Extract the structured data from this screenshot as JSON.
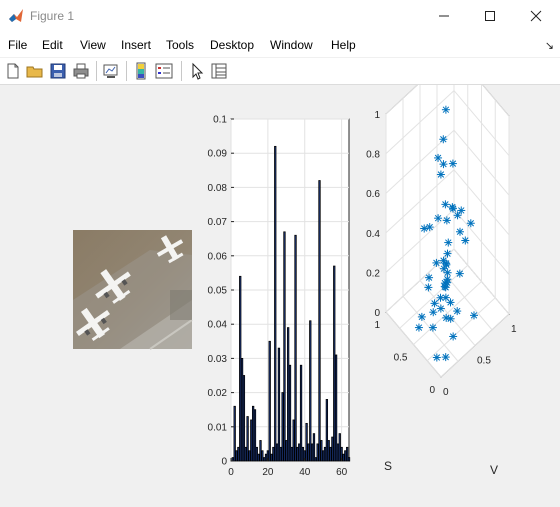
{
  "window": {
    "title": "Figure 1"
  },
  "menu": [
    "File",
    "Edit",
    "View",
    "Insert",
    "Tools",
    "Desktop",
    "Window",
    "Help"
  ],
  "toolbar_icons": [
    "new-figure-icon",
    "open-file-icon",
    "save-icon",
    "print-icon",
    "link-plot-icon",
    "colorbar-icon",
    "legend-icon",
    "pointer-icon",
    "property-inspector-icon"
  ],
  "image_panel": {
    "content": "aerial-airplanes-photo"
  },
  "chart_data": [
    {
      "type": "bar",
      "xlim": [
        0,
        64
      ],
      "ylim": [
        0,
        0.1
      ],
      "xticks": [
        "0",
        "20",
        "40",
        "60"
      ],
      "yticks": [
        "0",
        "0.01",
        "0.02",
        "0.03",
        "0.04",
        "0.05",
        "0.06",
        "0.07",
        "0.08",
        "0.09",
        "0.1"
      ],
      "grid": true,
      "values": [
        0.001,
        0.016,
        0.003,
        0.004,
        0.054,
        0.03,
        0.025,
        0.004,
        0.013,
        0.003,
        0.012,
        0.016,
        0.015,
        0.004,
        0.002,
        0.006,
        0.003,
        0.001,
        0.002,
        0.003,
        0.035,
        0.002,
        0.004,
        0.092,
        0.005,
        0.033,
        0.004,
        0.02,
        0.067,
        0.006,
        0.039,
        0.028,
        0.004,
        0.012,
        0.066,
        0.004,
        0.005,
        0.028,
        0.004,
        0.003,
        0.011,
        0.005,
        0.041,
        0.005,
        0.008,
        0.001,
        0.005,
        0.082,
        0.006,
        0.003,
        0.004,
        0.018,
        0.006,
        0.004,
        0.007,
        0.057,
        0.031,
        0.005,
        0.008,
        0.004,
        0.002,
        0.003,
        0.004,
        0.001
      ]
    },
    {
      "type": "scatter",
      "marker": "*",
      "color": "#0072bd",
      "xlabel": "S",
      "ylabel": "V",
      "xticks": [
        "0",
        "0.5",
        "1"
      ],
      "yticks": [
        "0",
        "0.5",
        "1"
      ],
      "zticks": [
        "0",
        "0.2",
        "0.4",
        "0.6",
        "0.8",
        "1"
      ],
      "zlim": [
        0,
        1
      ],
      "points": [
        [
          0.15,
          0.06,
          0.03
        ],
        [
          0.32,
          0.14,
          0.1
        ],
        [
          0.5,
          0.08,
          0.06
        ],
        [
          0.22,
          0.32,
          0.12
        ],
        [
          0.08,
          0.55,
          0.11
        ],
        [
          0.4,
          0.4,
          0.04
        ],
        [
          0.25,
          0.2,
          0.2
        ],
        [
          0.3,
          0.3,
          0.28
        ],
        [
          0.28,
          0.32,
          0.3
        ],
        [
          0.3,
          0.34,
          0.32
        ],
        [
          0.33,
          0.31,
          0.34
        ],
        [
          0.31,
          0.33,
          0.36
        ],
        [
          0.29,
          0.31,
          0.38
        ],
        [
          0.32,
          0.35,
          0.26
        ],
        [
          0.34,
          0.33,
          0.24
        ],
        [
          0.27,
          0.29,
          0.22
        ],
        [
          0.36,
          0.36,
          0.22
        ],
        [
          0.3,
          0.28,
          0.4
        ],
        [
          0.35,
          0.39,
          0.44
        ],
        [
          0.26,
          0.35,
          0.18
        ],
        [
          0.38,
          0.3,
          0.18
        ],
        [
          0.2,
          0.4,
          0.14
        ],
        [
          0.45,
          0.25,
          0.1
        ],
        [
          0.15,
          0.3,
          0.06
        ],
        [
          0.55,
          0.35,
          0.08
        ],
        [
          0.4,
          0.6,
          0.2
        ],
        [
          0.6,
          0.3,
          0.16
        ],
        [
          0.5,
          0.5,
          0.3
        ],
        [
          0.3,
          0.6,
          0.4
        ],
        [
          0.45,
          0.45,
          0.5
        ],
        [
          0.4,
          0.5,
          0.56
        ],
        [
          0.25,
          0.5,
          0.6
        ],
        [
          0.6,
          0.55,
          0.5
        ],
        [
          0.7,
          0.4,
          0.4
        ],
        [
          0.52,
          0.7,
          0.34
        ],
        [
          0.2,
          0.6,
          0.52
        ],
        [
          0.35,
          0.45,
          0.6
        ],
        [
          0.8,
          0.4,
          0.36
        ],
        [
          0.62,
          0.5,
          0.66
        ],
        [
          0.55,
          0.62,
          0.7
        ],
        [
          0.7,
          0.6,
          0.78
        ],
        [
          0.45,
          0.4,
          0.8
        ],
        [
          0.3,
          0.2,
          0.64
        ],
        [
          0.82,
          0.62,
          0.64
        ],
        [
          0.9,
          0.8,
          0.8
        ],
        [
          0.75,
          0.85,
          0.3
        ],
        [
          0.1,
          0.15,
          0.02
        ],
        [
          0.62,
          0.22,
          0.03
        ],
        [
          0.85,
          0.62,
          0.1
        ],
        [
          0.44,
          0.18,
          0.3
        ]
      ]
    }
  ]
}
